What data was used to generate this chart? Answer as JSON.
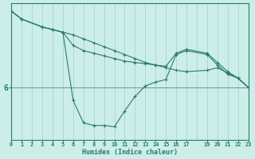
{
  "background_color": "#cceee8",
  "line_color": "#2a7a70",
  "grid_color": "#aad4cc",
  "xlabel": "Humidex (Indice chaleur)",
  "hline_y": 6,
  "xlim": [
    0,
    23
  ],
  "ylim": [
    4.0,
    9.2
  ],
  "figsize": [
    3.2,
    2.0
  ],
  "dpi": 100,
  "series": [
    {
      "x": [
        0,
        1,
        3,
        4,
        5,
        6,
        7,
        8,
        9,
        10,
        11,
        12,
        13,
        14,
        15,
        16,
        17,
        19,
        20,
        21,
        22,
        23
      ],
      "y": [
        8.9,
        8.6,
        8.3,
        8.2,
        8.1,
        8.0,
        7.85,
        7.7,
        7.55,
        7.4,
        7.25,
        7.1,
        6.95,
        6.85,
        6.75,
        6.65,
        6.6,
        6.65,
        6.75,
        6.55,
        6.35,
        6.0
      ]
    },
    {
      "x": [
        0,
        1,
        3,
        4,
        5,
        6,
        7,
        8,
        9,
        10,
        11,
        12,
        13,
        14,
        15,
        16,
        17,
        19,
        20,
        21,
        22,
        23
      ],
      "y": [
        8.9,
        8.6,
        8.3,
        8.2,
        8.1,
        7.6,
        7.4,
        7.3,
        7.2,
        7.1,
        7.0,
        6.95,
        6.9,
        6.85,
        6.8,
        7.3,
        7.45,
        7.3,
        6.95,
        6.6,
        6.35,
        6.0
      ]
    },
    {
      "x": [
        0,
        1,
        3,
        4,
        5,
        6,
        7,
        8,
        9,
        10,
        11,
        12,
        13,
        14,
        15,
        16,
        17,
        19,
        20,
        21,
        22,
        23
      ],
      "y": [
        8.9,
        8.6,
        8.3,
        8.2,
        8.1,
        5.5,
        4.65,
        4.55,
        4.55,
        4.5,
        5.1,
        5.65,
        6.05,
        6.2,
        6.3,
        7.25,
        7.4,
        7.25,
        6.85,
        6.5,
        6.35,
        6.0
      ]
    }
  ]
}
